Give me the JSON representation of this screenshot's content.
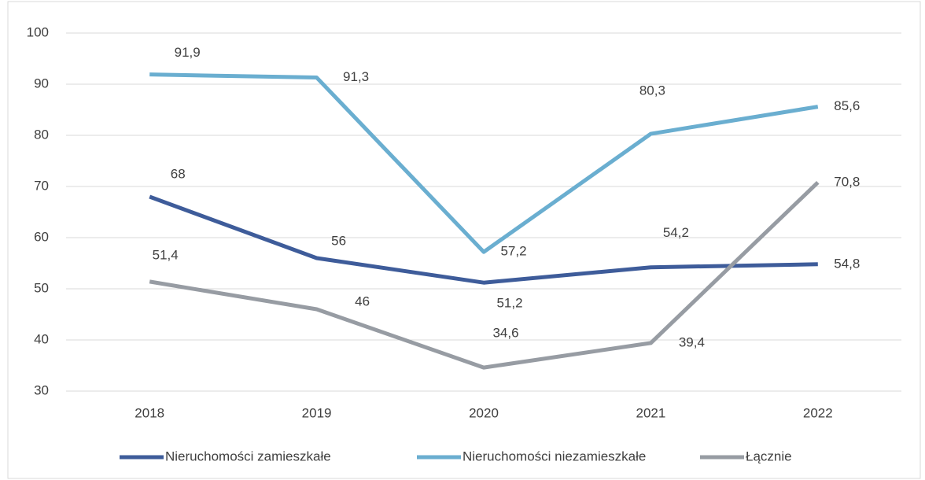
{
  "chart_data": {
    "type": "line",
    "categories": [
      "2018",
      "2019",
      "2020",
      "2021",
      "2022"
    ],
    "series": [
      {
        "name": "Nieruchomości zamieszkałe",
        "color": "#3e5c9a",
        "values": [
          68,
          56,
          51.2,
          54.2,
          54.8
        ],
        "value_labels": [
          "68",
          "56",
          "51,2",
          "54,2",
          "54,8"
        ]
      },
      {
        "name": "Nieruchomości niezamieszkałe",
        "color": "#6aaed0",
        "values": [
          91.9,
          91.3,
          57.2,
          80.3,
          85.6
        ],
        "value_labels": [
          "91,9",
          "91,3",
          "57,2",
          "80,3",
          "85,6"
        ]
      },
      {
        "name": "Łącznie",
        "color": "#979ca3",
        "values": [
          51.4,
          46,
          34.6,
          39.4,
          70.8
        ],
        "value_labels": [
          "51,4",
          "46",
          "34,6",
          "39,4",
          "70,8"
        ]
      }
    ],
    "ylim": [
      30,
      100
    ],
    "yticks": [
      30,
      40,
      50,
      60,
      70,
      80,
      90,
      100
    ],
    "grid": true,
    "legend": "bottom"
  }
}
